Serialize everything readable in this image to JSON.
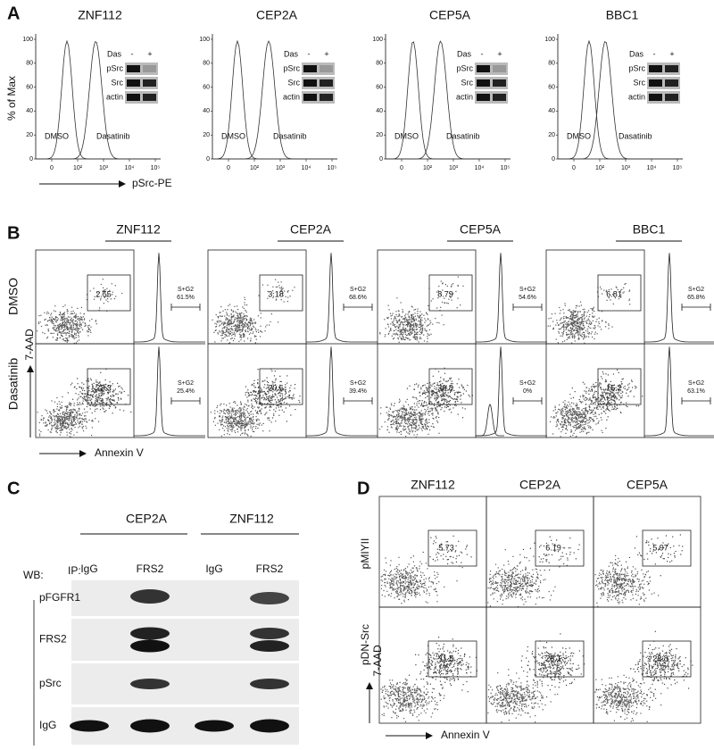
{
  "panel_a": {
    "letter": "A",
    "cell_lines": [
      "ZNF112",
      "CEP2A",
      "CEP5A",
      "BBC1"
    ],
    "y_label": "% of Max",
    "y_ticks": [
      "100",
      "80",
      "60",
      "40",
      "20",
      "0"
    ],
    "x_ticks": [
      "0",
      "10²",
      "10³",
      "10⁴",
      "10⁵"
    ],
    "x_label": "pSrc-PE",
    "peak_labels": [
      "DMSO",
      "Dasatinib"
    ],
    "blot_header": "Das",
    "blot_lanes": [
      "-",
      "+"
    ],
    "blot_rows": [
      "pSrc",
      "Src",
      "actin"
    ]
  },
  "panel_b": {
    "letter": "B",
    "cell_lines": [
      "ZNF112",
      "CEP2A",
      "CEP5A",
      "BBC1"
    ],
    "rows": [
      "DMSO",
      "Dasatinib"
    ],
    "gate_values": [
      [
        2.55,
        3.18,
        8.79,
        6.81
      ],
      [
        22.3,
        20.6,
        30.8,
        15.2
      ]
    ],
    "cycle_label": "S+G2",
    "cycle_values": [
      [
        "61.5%",
        "68.6%",
        "54.6%",
        "65.8%"
      ],
      [
        "25.4%",
        "39.4%",
        "0%",
        "63.1%"
      ]
    ],
    "y_label": "7-AAD",
    "x_label": "Annexin V"
  },
  "panel_c": {
    "letter": "C",
    "groups": [
      "CEP2A",
      "ZNF112"
    ],
    "wb_label": "WB:",
    "ip_label": "IP:",
    "lanes": [
      "IgG",
      "FRS2",
      "IgG",
      "FRS2"
    ],
    "blots": [
      "pFGFR1",
      "FRS2",
      "pSrc",
      "IgG"
    ]
  },
  "panel_d": {
    "letter": "D",
    "columns": [
      "ZNF112",
      "CEP2A",
      "CEP5A"
    ],
    "rows": [
      "pMIYII",
      "pDN-Src"
    ],
    "gate_values": [
      [
        5.73,
        6.19,
        5.97
      ],
      [
        11.5,
        28.1,
        23.8
      ]
    ],
    "y_label": "7-AAD",
    "x_label": "Annexin V"
  }
}
